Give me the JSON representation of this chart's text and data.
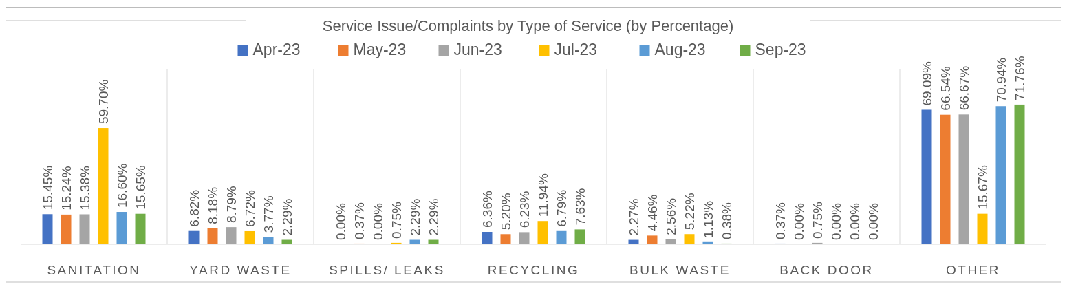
{
  "chart_data": {
    "type": "bar",
    "title": "Service Issue/Complaints by Type of Service (by Percentage)",
    "categories": [
      "SANITATION",
      "YARD WASTE",
      "SPILLS/ LEAKS",
      "RECYCLING",
      "BULK WASTE",
      "BACK DOOR",
      "OTHER"
    ],
    "series": [
      {
        "name": "Apr-23",
        "color": "#4472c4",
        "values": [
          15.45,
          6.82,
          0.0,
          6.36,
          2.27,
          0.37,
          69.09
        ],
        "value_labels": [
          "15.45%",
          "6.82%",
          "0.00%",
          "6.36%",
          "2.27%",
          "0.37%",
          "69.09%"
        ]
      },
      {
        "name": "May-23",
        "color": "#ed7d31",
        "values": [
          15.24,
          8.18,
          0.37,
          5.2,
          4.46,
          0.0,
          66.54
        ],
        "value_labels": [
          "15.24%",
          "8.18%",
          "0.37%",
          "5.20%",
          "4.46%",
          "0.00%",
          "66.54%"
        ]
      },
      {
        "name": "Jun-23",
        "color": "#a5a5a5",
        "values": [
          15.38,
          8.79,
          0.0,
          6.23,
          2.56,
          0.75,
          66.67
        ],
        "value_labels": [
          "15.38%",
          "8.79%",
          "0.00%",
          "6.23%",
          "2.56%",
          "0.75%",
          "66.67%"
        ]
      },
      {
        "name": "Jul-23",
        "color": "#ffc000",
        "values": [
          59.7,
          6.72,
          0.75,
          11.94,
          5.22,
          0.0,
          15.67
        ],
        "value_labels": [
          "59.70%",
          "6.72%",
          "0.75%",
          "11.94%",
          "5.22%",
          "0.00%",
          "15.67%"
        ]
      },
      {
        "name": "Aug-23",
        "color": "#5b9bd5",
        "values": [
          16.6,
          3.77,
          2.29,
          6.79,
          1.13,
          0.0,
          70.94
        ],
        "value_labels": [
          "16.60%",
          "3.77%",
          "2.29%",
          "6.79%",
          "1.13%",
          "0.00%",
          "70.94%"
        ]
      },
      {
        "name": "Sep-23",
        "color": "#70ad47",
        "values": [
          15.65,
          2.29,
          2.29,
          7.63,
          0.38,
          0.0,
          71.76
        ],
        "value_labels": [
          "15.65%",
          "2.29%",
          "2.29%",
          "7.63%",
          "0.38%",
          "0.00%",
          "71.76%"
        ]
      }
    ],
    "legend": "top"
  }
}
